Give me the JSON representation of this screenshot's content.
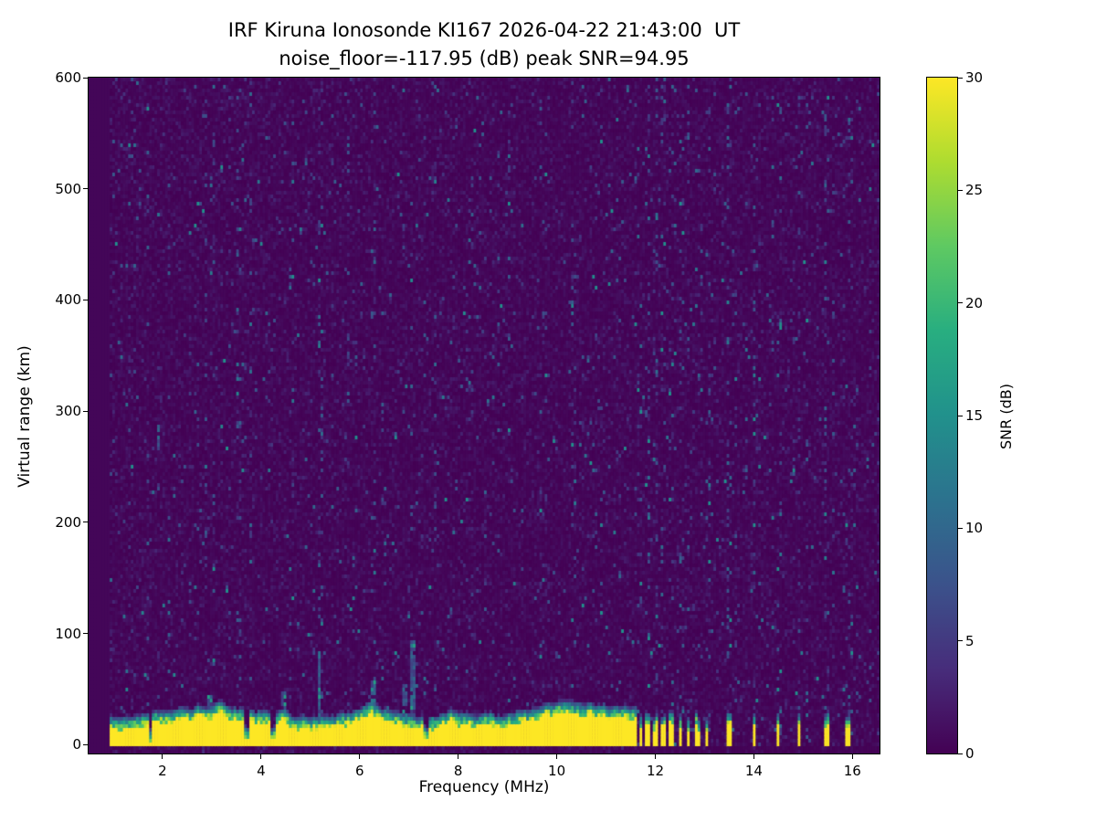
{
  "chart_data": {
    "type": "heatmap",
    "title": "IRF Kiruna Ionosonde KI167 2026-04-22 21:43:00  UT",
    "subtitle": "noise_floor=-117.95 (dB) peak SNR=94.95",
    "station": "IRF Kiruna Ionosonde KI167",
    "timestamp_ut": "2026-04-22 21:43:00",
    "noise_floor_db": -117.95,
    "peak_snr_db": 94.95,
    "xlabel": "Frequency (MHz)",
    "ylabel": "Virtual range (km)",
    "x_range": [
      0.5,
      16.55
    ],
    "y_range": [
      -8,
      600
    ],
    "x_ticks": [
      2,
      4,
      6,
      8,
      10,
      12,
      14,
      16
    ],
    "y_ticks": [
      0,
      100,
      200,
      300,
      400,
      500,
      600
    ],
    "grid": false,
    "legend": "none",
    "colorbar": {
      "label": "SNR (dB)",
      "range": [
        0,
        30
      ],
      "ticks": [
        0,
        5,
        10,
        15,
        20,
        25,
        30
      ],
      "colormap": "viridis"
    },
    "viridis_stops": [
      "#440154",
      "#472d7b",
      "#3b528b",
      "#2c728e",
      "#21918c",
      "#28ae80",
      "#5ec962",
      "#addc30",
      "#fde725"
    ],
    "features": {
      "data_start_mhz": 0.95,
      "background_snr_db": [
        0,
        3
      ],
      "speckle_snr_db": [
        4,
        15
      ],
      "ground_clutter_band": {
        "freq_span_mhz": [
          0.95,
          11.62
        ],
        "top_km_mean": 27,
        "top_km_jitter": 8,
        "saturated_snr_db": 30,
        "bottom_km": -3
      },
      "band_notches_mhz": [
        1.75,
        3.7,
        4.25,
        7.35
      ],
      "echo_spikes": [
        [
          2.98,
          45
        ],
        [
          4.48,
          48
        ],
        [
          5.18,
          85
        ],
        [
          6.28,
          60
        ],
        [
          6.9,
          55
        ],
        [
          7.08,
          95
        ]
      ],
      "hf_band_stripes_mhz": [
        11.7,
        11.85,
        12.0,
        12.15,
        12.32,
        12.5,
        12.68,
        12.86,
        13.04,
        13.5,
        14.02,
        14.48,
        14.92,
        15.48,
        15.9
      ],
      "interference_columns": [
        [
          1.32,
          3
        ],
        [
          1.72,
          3
        ],
        [
          2.15,
          2.5
        ],
        [
          2.88,
          6
        ],
        [
          3.02,
          4
        ],
        [
          3.38,
          3
        ],
        [
          3.55,
          5
        ],
        [
          3.78,
          3
        ],
        [
          4.62,
          3
        ],
        [
          5.2,
          4
        ],
        [
          5.78,
          3
        ],
        [
          6.3,
          4
        ],
        [
          7.06,
          5
        ],
        [
          7.32,
          3
        ],
        [
          7.55,
          3
        ],
        [
          8.25,
          3
        ],
        [
          9.05,
          3
        ],
        [
          9.68,
          3
        ],
        [
          10.35,
          3
        ],
        [
          10.92,
          3
        ]
      ],
      "hf_noise_columns": {
        "start_mhz": 11.65,
        "spacing_mhz": 0.18
      }
    }
  }
}
